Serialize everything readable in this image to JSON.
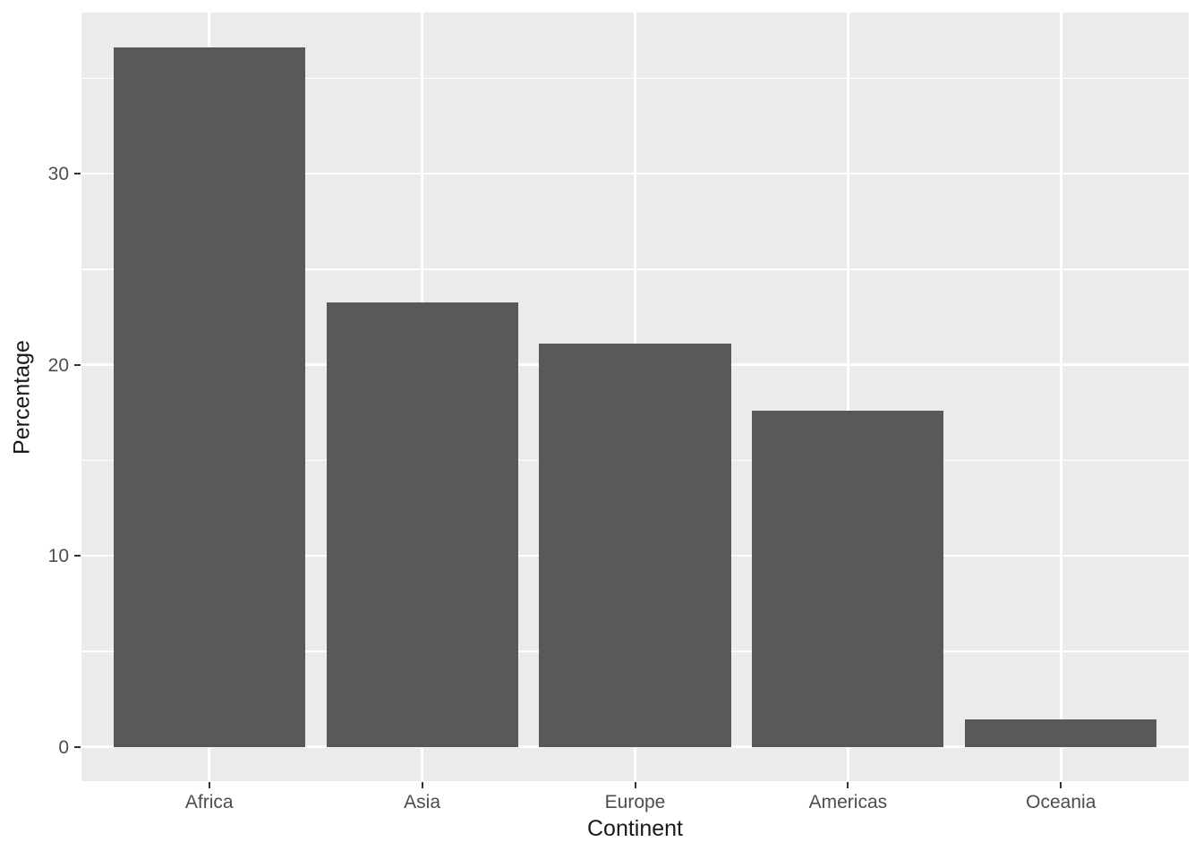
{
  "chart_data": {
    "type": "bar",
    "categories": [
      "Africa",
      "Asia",
      "Europe",
      "Americas",
      "Oceania"
    ],
    "values": [
      36.62,
      23.24,
      21.13,
      17.61,
      1.41
    ],
    "title": "",
    "xlabel": "Continent",
    "ylabel": "Percentage",
    "yticks": [
      0,
      10,
      20,
      30
    ],
    "yticks_minor": [
      5,
      15,
      25,
      35
    ],
    "ylim": [
      -1.8,
      38.44
    ],
    "grid": true,
    "legend": false,
    "layout_hint": "ggplot2 grey theme, vertical bars, no legend, no title",
    "colors": {
      "bar_fill": "#595959",
      "panel_background": "#EBEBEB",
      "gridline": "#FFFFFF",
      "tick_label": "#4D4D4D",
      "axis_title": "#1A1A1A",
      "tick_mark": "#333333",
      "outer_background": "#FFFFFF"
    }
  }
}
